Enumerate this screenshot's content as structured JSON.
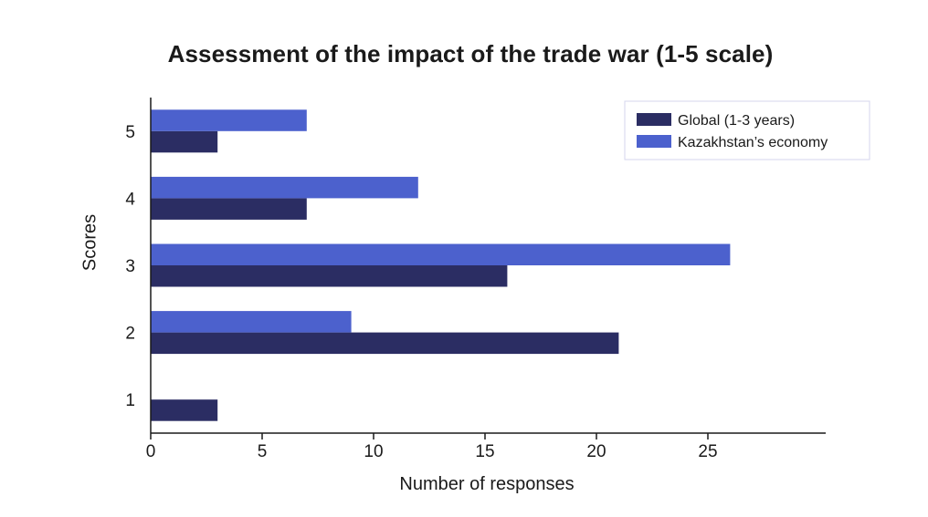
{
  "chart_data": {
    "type": "bar",
    "orientation": "horizontal",
    "title": "Assessment of the impact of the trade war (1-5 scale)",
    "xlabel": "Number of responses",
    "ylabel": "Scores",
    "categories": [
      "1",
      "2",
      "3",
      "4",
      "5"
    ],
    "series": [
      {
        "name": "Global (1-3 years)",
        "color": "#2b2d63",
        "values": [
          3,
          21,
          16,
          7,
          3
        ]
      },
      {
        "name": "Kazakhstan’s economy",
        "color": "#4c61cd",
        "values": [
          0,
          9,
          26,
          12,
          7
        ]
      }
    ],
    "xlim": [
      0,
      30
    ],
    "xticks": [
      0,
      5,
      10,
      15,
      20,
      25
    ],
    "grid": false,
    "legend_position": "top-right"
  }
}
